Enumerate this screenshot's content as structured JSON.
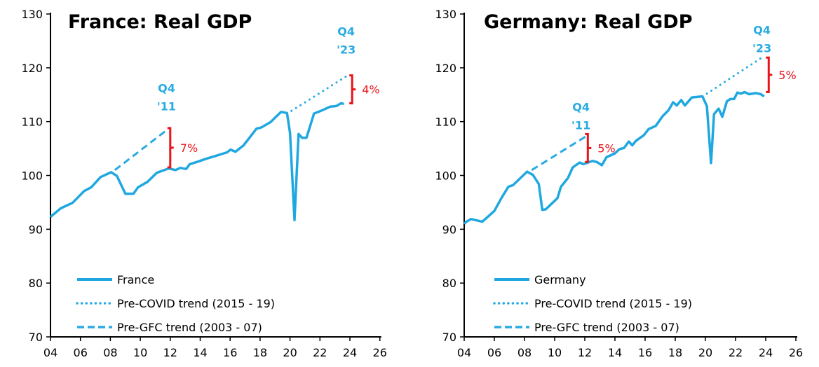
{
  "colors": {
    "series": "#1FA8E0",
    "trend": "#29ABE2",
    "bracket": "#E8141A",
    "axis": "#000000"
  },
  "chart_data": [
    {
      "type": "line",
      "title": "France: Real GDP",
      "xlim": [
        2004,
        2026
      ],
      "ylim": [
        70,
        130
      ],
      "x_ticks": [
        "04",
        "06",
        "08",
        "10",
        "12",
        "14",
        "16",
        "18",
        "20",
        "22",
        "24",
        "26"
      ],
      "y_ticks": [
        "70",
        "80",
        "90",
        "100",
        "110",
        "120",
        "130"
      ],
      "grid": false,
      "legend_position": "bottom-left",
      "series": [
        {
          "name": "France",
          "style": "solid",
          "x": [
            2004.0,
            2004.69,
            2005.47,
            2006.25,
            2006.72,
            2007.35,
            2008.05,
            2008.44,
            2009.0,
            2009.54,
            2009.85,
            2010.48,
            2011.1,
            2011.9,
            2012.35,
            2012.67,
            2013.06,
            2013.3,
            2013.77,
            2014.4,
            2015.0,
            2015.8,
            2016.03,
            2016.35,
            2016.9,
            2017.76,
            2018.07,
            2018.7,
            2019.4,
            2019.8,
            2020.0,
            2020.3,
            2020.57,
            2020.8,
            2021.1,
            2021.6,
            2022.06,
            2022.7,
            2023.1,
            2023.4,
            2023.6
          ],
          "y": [
            92.3,
            93.9,
            94.9,
            97.1,
            97.8,
            99.7,
            100.6,
            99.9,
            96.6,
            96.6,
            97.8,
            98.8,
            100.5,
            101.3,
            101.0,
            101.4,
            101.2,
            102.1,
            102.5,
            103.1,
            103.6,
            104.3,
            104.8,
            104.4,
            105.6,
            108.7,
            108.9,
            109.9,
            111.8,
            111.6,
            107.9,
            91.7,
            107.7,
            107.0,
            107.0,
            111.5,
            112.0,
            112.8,
            112.9,
            113.4,
            113.3
          ]
        },
        {
          "name": "Pre-COVID trend (2015 - 19)",
          "style": "dotted",
          "x": [
            2020.1,
            2023.75
          ],
          "y": [
            112.0,
            118.4
          ]
        },
        {
          "name": "Pre-GFC trend (2003 - 07)",
          "style": "dashed",
          "x": [
            2008.3,
            2011.8
          ],
          "y": [
            101.0,
            108.5
          ]
        }
      ],
      "annotations": [
        {
          "text_lines": [
            "Q4",
            "'11"
          ],
          "x": 2011.75,
          "y": 115.5,
          "kind": "label"
        },
        {
          "text_lines": [
            "Q4",
            "'23"
          ],
          "x": 2023.75,
          "y": 126.0,
          "kind": "label"
        },
        {
          "text": "7%",
          "x": 2012.0,
          "y_range": [
            101.5,
            108.8
          ],
          "kind": "bracket"
        },
        {
          "text": "4%",
          "x": 2024.15,
          "y_range": [
            113.4,
            118.6
          ],
          "kind": "bracket"
        }
      ]
    },
    {
      "type": "line",
      "title": "Germany: Real GDP",
      "xlim": [
        2004,
        2026
      ],
      "ylim": [
        70,
        130
      ],
      "x_ticks": [
        "04",
        "06",
        "08",
        "10",
        "12",
        "14",
        "16",
        "18",
        "20",
        "22",
        "24",
        "26"
      ],
      "y_ticks": [
        "70",
        "80",
        "90",
        "100",
        "110",
        "120",
        "130"
      ],
      "grid": false,
      "legend_position": "bottom-left",
      "series": [
        {
          "name": "Germany",
          "style": "solid",
          "x": [
            2004.0,
            2004.14,
            2004.45,
            2005.2,
            2006.0,
            2006.47,
            2006.93,
            2007.24,
            2008.17,
            2008.56,
            2008.95,
            2009.18,
            2009.41,
            2010.19,
            2010.42,
            2010.88,
            2011.2,
            2011.66,
            2011.9,
            2012.5,
            2012.8,
            2013.13,
            2013.44,
            2014.0,
            2014.3,
            2014.6,
            2014.92,
            2015.15,
            2015.38,
            2015.92,
            2016.23,
            2016.7,
            2017.16,
            2017.55,
            2017.86,
            2018.1,
            2018.4,
            2018.64,
            2019.1,
            2019.8,
            2020.1,
            2020.37,
            2020.57,
            2020.88,
            2021.12,
            2021.43,
            2021.66,
            2021.9,
            2022.12,
            2022.36,
            2022.6,
            2022.9,
            2023.36,
            2023.67,
            2023.9
          ],
          "y": [
            91.0,
            91.4,
            91.9,
            91.4,
            93.4,
            95.8,
            97.9,
            98.2,
            100.7,
            100.1,
            98.4,
            93.6,
            93.7,
            95.8,
            97.9,
            99.5,
            101.5,
            102.4,
            102.1,
            102.7,
            102.5,
            101.9,
            103.4,
            104.1,
            104.9,
            105.1,
            106.3,
            105.6,
            106.4,
            107.5,
            108.6,
            109.2,
            111.0,
            112.1,
            113.6,
            113.0,
            114.0,
            113.0,
            114.5,
            114.7,
            112.9,
            102.3,
            111.4,
            112.4,
            110.9,
            113.8,
            114.2,
            114.2,
            115.4,
            115.2,
            115.5,
            115.1,
            115.3,
            115.1,
            114.7
          ]
        },
        {
          "name": "Pre-COVID trend (2015 - 19)",
          "style": "dotted",
          "x": [
            2020.1,
            2023.75
          ],
          "y": [
            115.2,
            121.9
          ]
        },
        {
          "name": "Pre-GFC trend (2003 - 07)",
          "style": "dashed",
          "x": [
            2008.48,
            2012.1
          ],
          "y": [
            101.0,
            107.3
          ]
        }
      ],
      "annotations": [
        {
          "text_lines": [
            "Q4",
            "'11"
          ],
          "x": 2011.75,
          "y": 112.0,
          "kind": "label"
        },
        {
          "text_lines": [
            "Q4",
            "'23"
          ],
          "x": 2023.75,
          "y": 126.3,
          "kind": "label"
        },
        {
          "text": "5%",
          "x": 2012.2,
          "y_range": [
            102.5,
            107.7
          ],
          "kind": "bracket"
        },
        {
          "text": "5%",
          "x": 2024.2,
          "y_range": [
            115.5,
            121.9
          ],
          "kind": "bracket"
        }
      ]
    }
  ]
}
